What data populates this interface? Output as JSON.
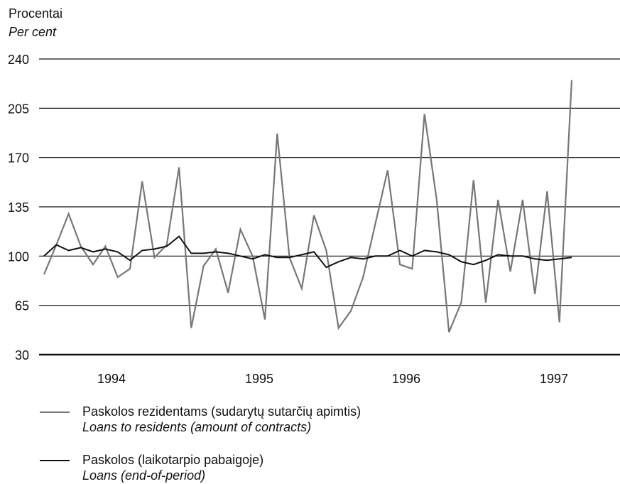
{
  "chart_data": {
    "type": "line",
    "ylabel": [
      "Procentai",
      "Per cent"
    ],
    "ylim": [
      30,
      240
    ],
    "yticks": [
      240,
      205,
      170,
      135,
      100,
      65,
      30
    ],
    "xtick_labels": [
      "1994",
      "1995",
      "1996",
      "1997"
    ],
    "grid": true,
    "legend_position": "bottom",
    "series": [
      {
        "name": "Paskolos rezidentams (sudarytų sutarčių apimtis) / Loans to residents (amount of contracts)",
        "name_lt": "Paskolos rezidentams (sudarytų sutarčių apimtis)",
        "name_en": "Loans to residents (amount of contracts)",
        "color": "#777777",
        "values": [
          87,
          108,
          130,
          107,
          94,
          107,
          85,
          91,
          153,
          99,
          108,
          163,
          49,
          93,
          105,
          74,
          119,
          100,
          55,
          187,
          99,
          77,
          129,
          104,
          49,
          61,
          85,
          123,
          161,
          94,
          91,
          201,
          140,
          46,
          67,
          154,
          67,
          140,
          89,
          140,
          73,
          146,
          53,
          225
        ]
      },
      {
        "name": "Paskolos (laikotarpio pabaigoje) / Loans (end-of-period)",
        "name_lt": "Paskolos (laikotarpio pabaigoje)",
        "name_en": "Loans (end-of-period)",
        "color": "#111111",
        "values": [
          100,
          108,
          104,
          106,
          103,
          105,
          103,
          97,
          104,
          105,
          107,
          114,
          102,
          102,
          103,
          102,
          100,
          98,
          101,
          99,
          99,
          101,
          103,
          92,
          96,
          99,
          98,
          100,
          100,
          104,
          100,
          104,
          103,
          101,
          96,
          94,
          97,
          101,
          100,
          100,
          98,
          97,
          98,
          99
        ]
      }
    ]
  },
  "legend": {
    "item1_lt": "Paskolos rezidentams (sudarytų sutarčių apimtis)",
    "item1_en": "Loans to residents (amount of contracts)",
    "item2_lt": "Paskolos (laikotarpio pabaigoje)",
    "item2_en": "Loans (end-of-period)"
  }
}
